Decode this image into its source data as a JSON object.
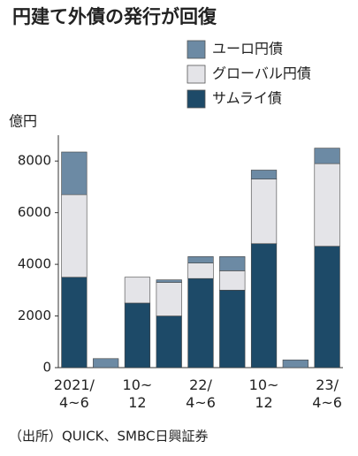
{
  "chart_data": {
    "type": "stacked_bar",
    "title": "円建て外債の発行が回復",
    "y_unit": "億円",
    "source": "（出所）QUICK、SMBC日興証券",
    "categories": [
      "2021/\n4~6",
      null,
      "10~\n12",
      null,
      "22/\n4~6",
      null,
      "10~\n12",
      null,
      "23/\n4~6"
    ],
    "series": [
      {
        "name": "サムライ債",
        "color": "#1d4a68",
        "values": [
          3500,
          0,
          2500,
          2000,
          3450,
          3000,
          4800,
          0,
          4700
        ]
      },
      {
        "name": "グローバル円債",
        "color": "#e4e4e8",
        "values": [
          3200,
          0,
          1000,
          1300,
          600,
          750,
          2500,
          0,
          3200
        ]
      },
      {
        "name": "ユーロ円債",
        "color": "#6c8aa4",
        "values": [
          1650,
          350,
          0,
          100,
          250,
          550,
          350,
          300,
          600
        ]
      }
    ],
    "ylim": [
      0,
      9000
    ],
    "yticks": [
      0,
      2000,
      4000,
      6000,
      8000
    ]
  }
}
